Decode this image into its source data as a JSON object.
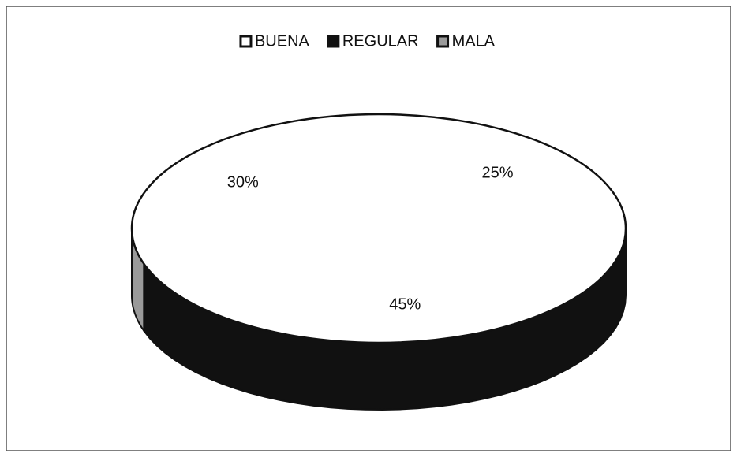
{
  "chart_data": {
    "type": "pie",
    "categories": [
      "BUENA",
      "REGULAR",
      "MALA"
    ],
    "values": [
      25,
      45,
      30
    ],
    "value_labels": [
      "25%",
      "45%",
      "30%"
    ],
    "colors": [
      "#ffffff",
      "#111111",
      "#9a9a9a"
    ],
    "legend": "top"
  }
}
